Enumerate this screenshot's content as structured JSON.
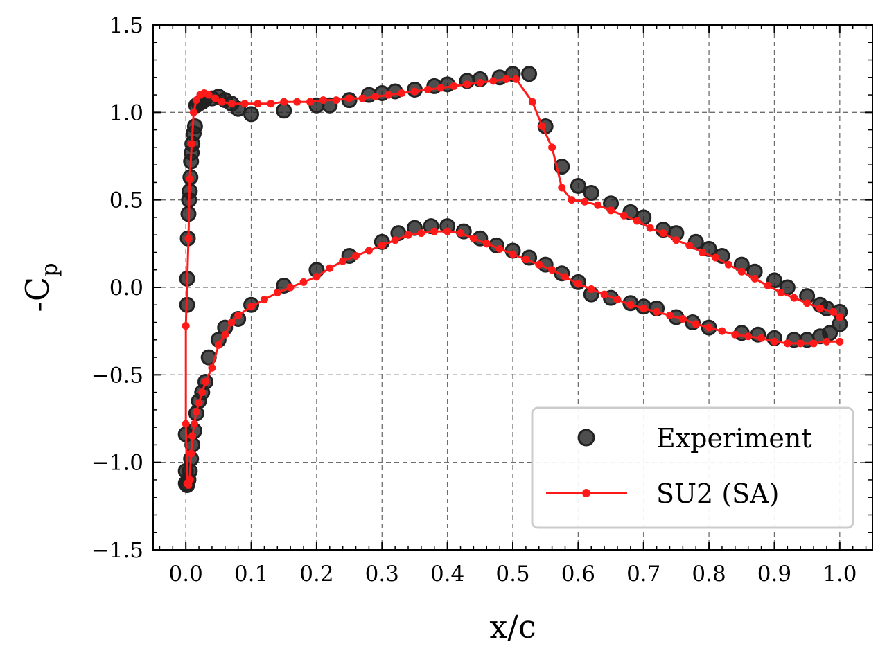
{
  "chart_data": {
    "type": "scatter",
    "xlabel": "x/c",
    "ylabel": "-C",
    "ylabel_sub": "p",
    "xlim": [
      -0.05,
      1.05
    ],
    "ylim": [
      -1.5,
      1.5
    ],
    "xticks": [
      0.0,
      0.1,
      0.2,
      0.3,
      0.4,
      0.5,
      0.6,
      0.7,
      0.8,
      0.9,
      1.0
    ],
    "yticks": [
      1.5,
      1.0,
      0.5,
      0.0,
      -0.5,
      -1.0,
      -1.5
    ],
    "xtick_labels": [
      "0.0",
      "0.1",
      "0.2",
      "0.3",
      "0.4",
      "0.5",
      "0.6",
      "0.7",
      "0.8",
      "0.9",
      "1.0"
    ],
    "ytick_labels": [
      "1.5",
      "1.0",
      "0.5",
      "0.0",
      "−0.5",
      "−1.0",
      "−1.5"
    ],
    "grid": true,
    "legend_position": "bottom-right",
    "series": [
      {
        "name": "Experiment",
        "style": "markers",
        "color": "#222222",
        "points": [
          [
            0.0,
            -1.05
          ],
          [
            0.0,
            -0.84
          ],
          [
            0.002,
            -0.1
          ],
          [
            0.002,
            0.05
          ],
          [
            0.003,
            0.28
          ],
          [
            0.004,
            0.42
          ],
          [
            0.005,
            0.5
          ],
          [
            0.006,
            0.55
          ],
          [
            0.007,
            0.63
          ],
          [
            0.008,
            0.72
          ],
          [
            0.009,
            0.77
          ],
          [
            0.01,
            0.82
          ],
          [
            0.012,
            0.88
          ],
          [
            0.014,
            0.92
          ],
          [
            0.016,
            1.04
          ],
          [
            0.02,
            1.05
          ],
          [
            0.025,
            1.06
          ],
          [
            0.03,
            1.08
          ],
          [
            0.04,
            1.08
          ],
          [
            0.05,
            1.09
          ],
          [
            0.06,
            1.07
          ],
          [
            0.07,
            1.05
          ],
          [
            0.08,
            1.02
          ],
          [
            0.1,
            0.99
          ],
          [
            0.15,
            1.01
          ],
          [
            0.2,
            1.04
          ],
          [
            0.22,
            1.04
          ],
          [
            0.25,
            1.07
          ],
          [
            0.28,
            1.1
          ],
          [
            0.3,
            1.11
          ],
          [
            0.32,
            1.12
          ],
          [
            0.35,
            1.13
          ],
          [
            0.38,
            1.15
          ],
          [
            0.4,
            1.16
          ],
          [
            0.43,
            1.18
          ],
          [
            0.45,
            1.19
          ],
          [
            0.48,
            1.2
          ],
          [
            0.5,
            1.22
          ],
          [
            0.525,
            1.22
          ],
          [
            0.55,
            0.92
          ],
          [
            0.575,
            0.69
          ],
          [
            0.6,
            0.58
          ],
          [
            0.62,
            0.54
          ],
          [
            0.65,
            0.48
          ],
          [
            0.68,
            0.43
          ],
          [
            0.7,
            0.4
          ],
          [
            0.73,
            0.33
          ],
          [
            0.75,
            0.31
          ],
          [
            0.78,
            0.26
          ],
          [
            0.8,
            0.22
          ],
          [
            0.82,
            0.18
          ],
          [
            0.85,
            0.13
          ],
          [
            0.87,
            0.09
          ],
          [
            0.9,
            0.04
          ],
          [
            0.92,
            0.0
          ],
          [
            0.95,
            -0.05
          ],
          [
            0.97,
            -0.1
          ],
          [
            0.98,
            -0.12
          ],
          [
            1.0,
            -0.14
          ],
          [
            1.0,
            -0.21
          ],
          [
            0.985,
            -0.26
          ],
          [
            0.97,
            -0.28
          ],
          [
            0.95,
            -0.3
          ],
          [
            0.93,
            -0.3
          ],
          [
            0.9,
            -0.29
          ],
          [
            0.875,
            -0.27
          ],
          [
            0.85,
            -0.26
          ],
          [
            0.8,
            -0.23
          ],
          [
            0.775,
            -0.2
          ],
          [
            0.75,
            -0.17
          ],
          [
            0.72,
            -0.12
          ],
          [
            0.7,
            -0.11
          ],
          [
            0.68,
            -0.09
          ],
          [
            0.65,
            -0.06
          ],
          [
            0.62,
            -0.04
          ],
          [
            0.6,
            0.03
          ],
          [
            0.575,
            0.08
          ],
          [
            0.55,
            0.13
          ],
          [
            0.525,
            0.17
          ],
          [
            0.5,
            0.21
          ],
          [
            0.475,
            0.24
          ],
          [
            0.45,
            0.28
          ],
          [
            0.425,
            0.32
          ],
          [
            0.4,
            0.35
          ],
          [
            0.375,
            0.35
          ],
          [
            0.35,
            0.34
          ],
          [
            0.325,
            0.31
          ],
          [
            0.3,
            0.26
          ],
          [
            0.25,
            0.18
          ],
          [
            0.2,
            0.1
          ],
          [
            0.15,
            0.01
          ],
          [
            0.1,
            -0.1
          ],
          [
            0.08,
            -0.18
          ],
          [
            0.06,
            -0.23
          ],
          [
            0.05,
            -0.3
          ],
          [
            0.035,
            -0.4
          ],
          [
            0.03,
            -0.54
          ],
          [
            0.025,
            -0.6
          ],
          [
            0.02,
            -0.65
          ],
          [
            0.016,
            -0.72
          ],
          [
            0.013,
            -0.82
          ],
          [
            0.01,
            -0.9
          ],
          [
            0.008,
            -0.98
          ],
          [
            0.006,
            -1.05
          ],
          [
            0.004,
            -1.1
          ],
          [
            0.002,
            -1.13
          ],
          [
            0.0,
            -1.12
          ]
        ]
      },
      {
        "name": "SU2 (SA)",
        "style": "line-markers",
        "color": "#ff1a1a",
        "points": [
          [
            1.0,
            -0.17
          ],
          [
            0.99,
            -0.14
          ],
          [
            0.97,
            -0.12
          ],
          [
            0.95,
            -0.09
          ],
          [
            0.93,
            -0.06
          ],
          [
            0.91,
            -0.03
          ],
          [
            0.89,
            0.01
          ],
          [
            0.87,
            0.05
          ],
          [
            0.85,
            0.09
          ],
          [
            0.83,
            0.13
          ],
          [
            0.81,
            0.17
          ],
          [
            0.79,
            0.2
          ],
          [
            0.77,
            0.24
          ],
          [
            0.75,
            0.27
          ],
          [
            0.73,
            0.31
          ],
          [
            0.71,
            0.34
          ],
          [
            0.69,
            0.38
          ],
          [
            0.67,
            0.41
          ],
          [
            0.65,
            0.44
          ],
          [
            0.63,
            0.47
          ],
          [
            0.61,
            0.49
          ],
          [
            0.59,
            0.5
          ],
          [
            0.575,
            0.57
          ],
          [
            0.56,
            0.8
          ],
          [
            0.545,
            0.92
          ],
          [
            0.53,
            1.06
          ],
          [
            0.505,
            1.19
          ],
          [
            0.49,
            1.19
          ],
          [
            0.47,
            1.18
          ],
          [
            0.45,
            1.17
          ],
          [
            0.43,
            1.16
          ],
          [
            0.41,
            1.15
          ],
          [
            0.39,
            1.14
          ],
          [
            0.37,
            1.13
          ],
          [
            0.35,
            1.12
          ],
          [
            0.33,
            1.11
          ],
          [
            0.31,
            1.1
          ],
          [
            0.29,
            1.09
          ],
          [
            0.27,
            1.08
          ],
          [
            0.25,
            1.08
          ],
          [
            0.23,
            1.07
          ],
          [
            0.21,
            1.07
          ],
          [
            0.19,
            1.06
          ],
          [
            0.17,
            1.06
          ],
          [
            0.15,
            1.06
          ],
          [
            0.13,
            1.05
          ],
          [
            0.11,
            1.05
          ],
          [
            0.09,
            1.05
          ],
          [
            0.07,
            1.05
          ],
          [
            0.055,
            1.06
          ],
          [
            0.045,
            1.08
          ],
          [
            0.035,
            1.1
          ],
          [
            0.028,
            1.11
          ],
          [
            0.022,
            1.1
          ],
          [
            0.016,
            1.07
          ],
          [
            0.012,
            1.0
          ],
          [
            0.009,
            0.82
          ],
          [
            0.006,
            0.62
          ],
          [
            0.004,
            0.28
          ],
          [
            0.0,
            -0.22
          ],
          [
            0.0,
            -0.78
          ],
          [
            0.002,
            -1.12
          ],
          [
            0.004,
            -1.13
          ],
          [
            0.006,
            -1.1
          ],
          [
            0.008,
            -0.95
          ],
          [
            0.01,
            -0.85
          ],
          [
            0.013,
            -0.78
          ],
          [
            0.016,
            -0.71
          ],
          [
            0.02,
            -0.66
          ],
          [
            0.025,
            -0.6
          ],
          [
            0.03,
            -0.54
          ],
          [
            0.04,
            -0.46
          ],
          [
            0.05,
            -0.33
          ],
          [
            0.06,
            -0.27
          ],
          [
            0.07,
            -0.2
          ],
          [
            0.08,
            -0.16
          ],
          [
            0.1,
            -0.11
          ],
          [
            0.12,
            -0.07
          ],
          [
            0.14,
            -0.03
          ],
          [
            0.16,
            0.0
          ],
          [
            0.18,
            0.03
          ],
          [
            0.2,
            0.06
          ],
          [
            0.22,
            0.11
          ],
          [
            0.24,
            0.15
          ],
          [
            0.26,
            0.18
          ],
          [
            0.28,
            0.21
          ],
          [
            0.3,
            0.24
          ],
          [
            0.32,
            0.27
          ],
          [
            0.34,
            0.3
          ],
          [
            0.36,
            0.31
          ],
          [
            0.38,
            0.32
          ],
          [
            0.4,
            0.32
          ],
          [
            0.42,
            0.31
          ],
          [
            0.44,
            0.28
          ],
          [
            0.46,
            0.25
          ],
          [
            0.48,
            0.22
          ],
          [
            0.5,
            0.19
          ],
          [
            0.52,
            0.16
          ],
          [
            0.54,
            0.13
          ],
          [
            0.56,
            0.1
          ],
          [
            0.58,
            0.06
          ],
          [
            0.6,
            0.02
          ],
          [
            0.62,
            -0.01
          ],
          [
            0.64,
            -0.04
          ],
          [
            0.66,
            -0.07
          ],
          [
            0.68,
            -0.1
          ],
          [
            0.7,
            -0.12
          ],
          [
            0.72,
            -0.14
          ],
          [
            0.74,
            -0.16
          ],
          [
            0.76,
            -0.18
          ],
          [
            0.78,
            -0.21
          ],
          [
            0.8,
            -0.23
          ],
          [
            0.82,
            -0.25
          ],
          [
            0.84,
            -0.27
          ],
          [
            0.86,
            -0.28
          ],
          [
            0.88,
            -0.29
          ],
          [
            0.9,
            -0.31
          ],
          [
            0.92,
            -0.32
          ],
          [
            0.94,
            -0.32
          ],
          [
            0.96,
            -0.32
          ],
          [
            0.98,
            -0.31
          ],
          [
            1.0,
            -0.31
          ]
        ]
      }
    ]
  }
}
